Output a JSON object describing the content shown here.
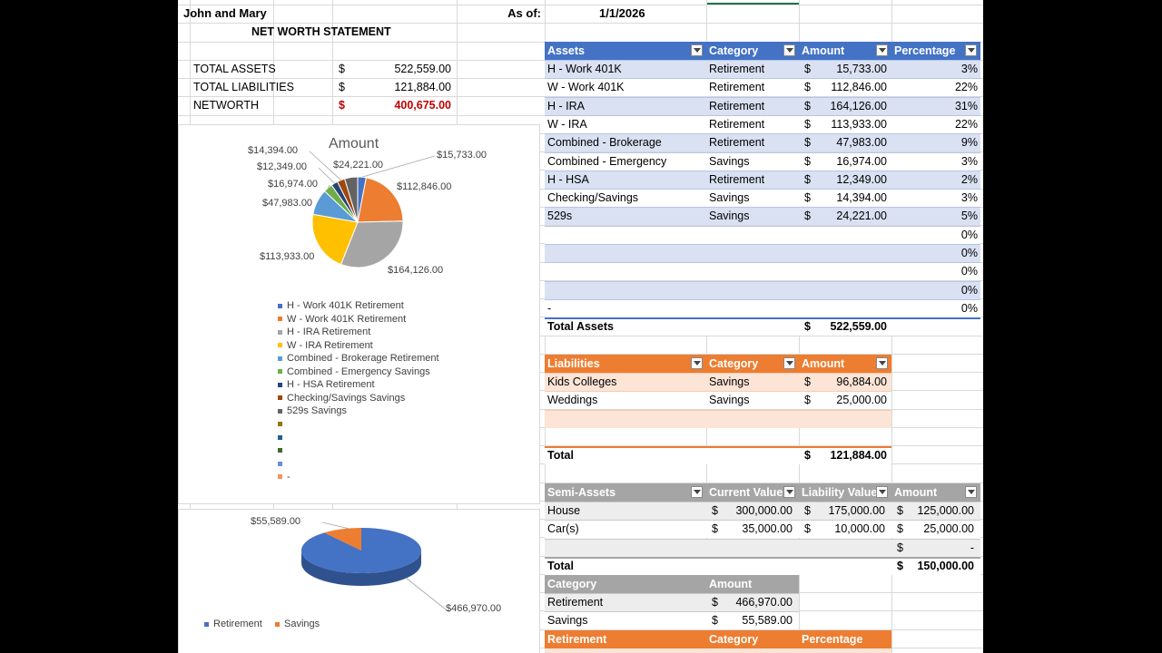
{
  "header": {
    "names": "John and Mary",
    "as_of_label": "As of:",
    "as_of_date": "1/1/2026",
    "title": "NET WORTH STATEMENT"
  },
  "summary": {
    "assets_label": "TOTAL ASSETS",
    "assets_sym": "$",
    "assets_value": "522,559.00",
    "liab_label": "TOTAL LIABILITIES",
    "liab_sym": "$",
    "liab_value": "121,884.00",
    "net_label": "NETWORTH",
    "net_sym": "$",
    "net_value": "400,675.00"
  },
  "assets": {
    "headers": [
      "Assets",
      "Category",
      "Amount",
      "Percentage"
    ],
    "rows": [
      [
        "H - Work 401K",
        "Retirement",
        "$",
        "15,733.00",
        "3%"
      ],
      [
        "W - Work 401K",
        "Retirement",
        "$",
        "112,846.00",
        "22%"
      ],
      [
        "H - IRA",
        "Retirement",
        "$",
        "164,126.00",
        "31%"
      ],
      [
        "W - IRA",
        "Retirement",
        "$",
        "113,933.00",
        "22%"
      ],
      [
        "Combined - Brokerage",
        "Retirement",
        "$",
        "47,983.00",
        "9%"
      ],
      [
        "Combined - Emergency",
        "Savings",
        "$",
        "16,974.00",
        "3%"
      ],
      [
        "H - HSA",
        "Retirement",
        "$",
        "12,349.00",
        "2%"
      ],
      [
        "Checking/Savings",
        "Savings",
        "$",
        "14,394.00",
        "3%"
      ],
      [
        "529s",
        "Savings",
        "$",
        "24,221.00",
        "5%"
      ],
      [
        "",
        "",
        "",
        "",
        "0%"
      ],
      [
        "",
        "",
        "",
        "",
        "0%"
      ],
      [
        "",
        "",
        "",
        "",
        "0%"
      ],
      [
        "",
        "",
        "",
        "",
        "0%"
      ],
      [
        "-",
        "",
        "",
        "",
        "0%"
      ]
    ],
    "total_label": "Total Assets",
    "total_sym": "$",
    "total_value": "522,559.00"
  },
  "liabilities": {
    "headers": [
      "Liabilities",
      "Category",
      "Amount"
    ],
    "rows": [
      [
        "Kids Colleges",
        "Savings",
        "$",
        "96,884.00"
      ],
      [
        "Weddings",
        "Savings",
        "$",
        "25,000.00"
      ],
      [
        "",
        "",
        "",
        ""
      ]
    ],
    "total_label": "Total",
    "total_sym": "$",
    "total_value": "121,884.00"
  },
  "semi_assets": {
    "headers": [
      "Semi-Assets",
      "Current Value",
      "Liability Value",
      "Amount"
    ],
    "rows": [
      [
        "House",
        "$",
        "300,000.00",
        "$",
        "175,000.00",
        "$",
        "125,000.00"
      ],
      [
        "Car(s)",
        "$",
        "35,000.00",
        "$",
        "10,000.00",
        "$",
        "25,000.00"
      ],
      [
        "",
        "",
        "",
        "",
        "",
        "$",
        "-"
      ]
    ],
    "total_label": "Total",
    "total_sym": "$",
    "total_value": "150,000.00"
  },
  "category_summary": {
    "headers": [
      "Category",
      "Amount"
    ],
    "rows": [
      [
        "Retirement",
        "$",
        "466,970.00"
      ],
      [
        "Savings",
        "$",
        "55,589.00"
      ]
    ]
  },
  "retirement_header": [
    "Retirement",
    "Category",
    "Percentage"
  ],
  "chart_data": [
    {
      "type": "pie",
      "title": "Amount",
      "values": [
        15733,
        112846,
        164126,
        113933,
        47983,
        16974,
        12349,
        14394,
        24221
      ],
      "data_labels": [
        "$15,733.00",
        "$112,846.00",
        "$164,126.00",
        "$113,933.00",
        "$47,983.00",
        "$16,974.00",
        "$12,349.00",
        "$14,394.00",
        "$24,221.00"
      ],
      "colors": [
        "#4472c4",
        "#ed7d31",
        "#a5a5a5",
        "#ffc000",
        "#5b9bd5",
        "#70ad47",
        "#264478",
        "#9e480e",
        "#636363"
      ],
      "legend": [
        "H - Work 401K Retirement",
        "W - Work 401K Retirement",
        "H - IRA Retirement",
        "W - IRA Retirement",
        "Combined - Brokerage Retirement",
        "Combined - Emergency Savings",
        "H - HSA Retirement",
        "Checking/Savings Savings",
        "529s Savings",
        "",
        "",
        "",
        "",
        "-"
      ],
      "legend_colors": [
        "#4472c4",
        "#ed7d31",
        "#a5a5a5",
        "#ffc000",
        "#5b9bd5",
        "#70ad47",
        "#264478",
        "#9e480e",
        "#636363",
        "#997300",
        "#255e91",
        "#43682b",
        "#698ed0",
        "#f1975a"
      ]
    },
    {
      "type": "pie",
      "categories": [
        "Retirement",
        "Savings"
      ],
      "values": [
        466970,
        55589
      ],
      "data_labels": [
        "$466,970.00",
        "$55,589.00"
      ],
      "colors": [
        "#4472c4",
        "#ed7d31"
      ],
      "legend": [
        "Retirement",
        "Savings"
      ]
    }
  ]
}
